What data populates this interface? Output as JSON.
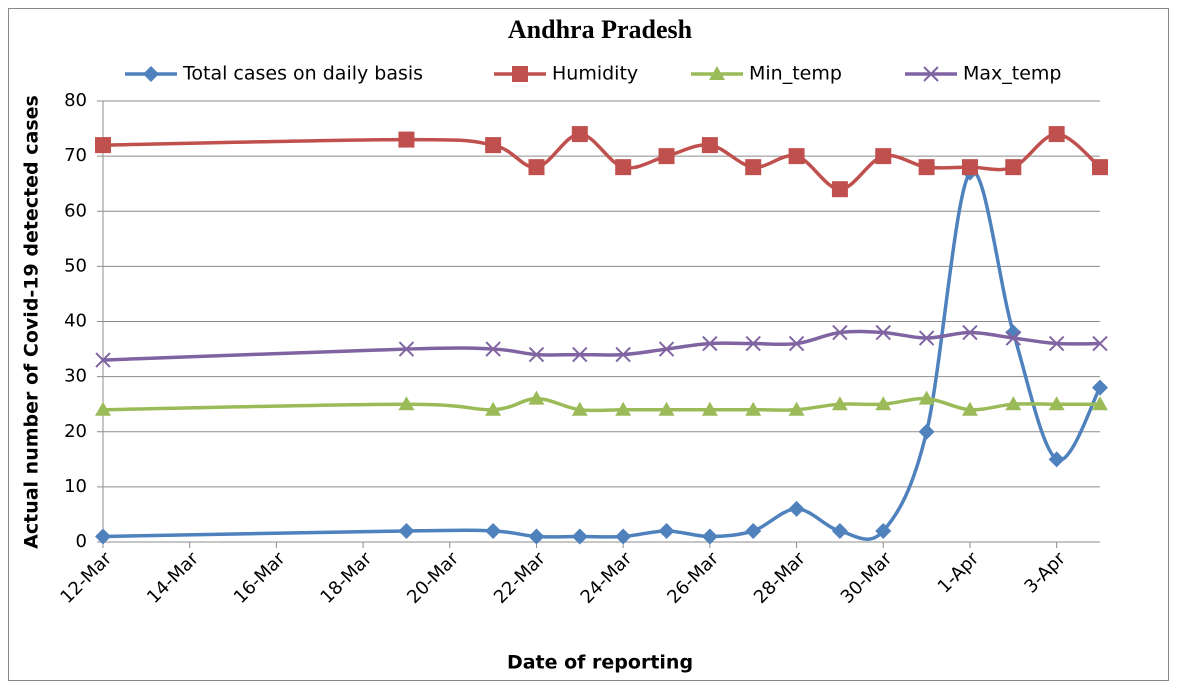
{
  "chart_data": {
    "type": "line",
    "title": "Andhra Pradesh",
    "x_label": "Date of reporting",
    "y_label": "Actual number of Covid-19 detected cases",
    "x": [
      "03-12",
      "03-19",
      "03-21",
      "03-22",
      "03-23",
      "03-24",
      "03-25",
      "03-26",
      "03-27",
      "03-28",
      "03-29",
      "03-30",
      "03-31",
      "04-01",
      "04-02",
      "04-03",
      "04-04"
    ],
    "xlim": [
      "03-12",
      "04-04"
    ],
    "xticks": [
      {
        "value": "03-12",
        "label": "12-Mar"
      },
      {
        "value": "03-14",
        "label": "14-Mar"
      },
      {
        "value": "03-16",
        "label": "16-Mar"
      },
      {
        "value": "03-18",
        "label": "18-Mar"
      },
      {
        "value": "03-20",
        "label": "20-Mar"
      },
      {
        "value": "03-22",
        "label": "22-Mar"
      },
      {
        "value": "03-24",
        "label": "24-Mar"
      },
      {
        "value": "03-26",
        "label": "26-Mar"
      },
      {
        "value": "03-28",
        "label": "28-Mar"
      },
      {
        "value": "03-30",
        "label": "30-Mar"
      },
      {
        "value": "04-01",
        "label": "1-Apr"
      },
      {
        "value": "04-03",
        "label": "3-Apr"
      }
    ],
    "ylim": [
      0,
      80
    ],
    "yticks": [
      0,
      10,
      20,
      30,
      40,
      50,
      60,
      70,
      80
    ],
    "grid": true,
    "smooth": true,
    "legend": "top",
    "series": [
      {
        "name": "Total cases on daily basis",
        "color": "#4f81bd",
        "marker": "diamond",
        "values": [
          1,
          2,
          2,
          1,
          1,
          1,
          2,
          1,
          2,
          6,
          2,
          2,
          20,
          67,
          38,
          15,
          28
        ]
      },
      {
        "name": "Humidity",
        "color": "#c0504d",
        "marker": "square",
        "values": [
          72,
          73,
          72,
          68,
          74,
          68,
          70,
          72,
          68,
          70,
          64,
          70,
          68,
          68,
          68,
          74,
          68
        ]
      },
      {
        "name": "Min_temp",
        "color": "#9bbb59",
        "marker": "triangle",
        "values": [
          24,
          25,
          24,
          26,
          24,
          24,
          24,
          24,
          24,
          24,
          25,
          25,
          26,
          24,
          25,
          25,
          25
        ]
      },
      {
        "name": "Max_temp",
        "color": "#8064a2",
        "marker": "x",
        "values": [
          33,
          35,
          35,
          34,
          34,
          34,
          35,
          36,
          36,
          36,
          38,
          38,
          37,
          38,
          37,
          36,
          36
        ]
      }
    ]
  }
}
